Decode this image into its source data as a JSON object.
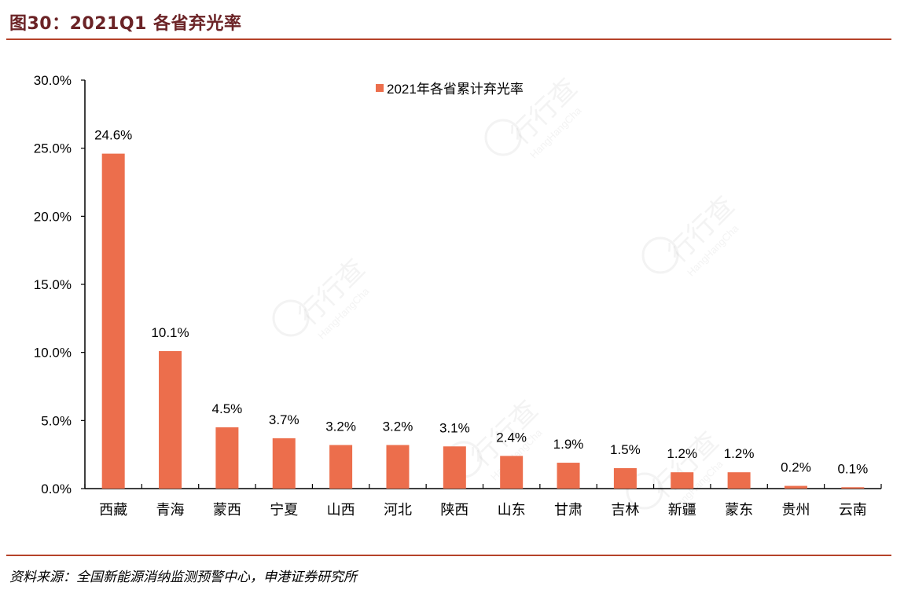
{
  "header": {
    "title": "图30：2021Q1 各省弃光率"
  },
  "footer": {
    "source": "资料来源：全国新能源消纳监测预警中心，申港证券研究所"
  },
  "watermark": {
    "text": "行行查",
    "subtext": "HangHangCha"
  },
  "colors": {
    "bar": "#ec6e4c",
    "title": "#6b2326",
    "rule": "#b5432a",
    "axis": "#000000"
  },
  "chart_data": {
    "type": "bar",
    "title": "图30：2021Q1 各省弃光率",
    "xlabel": "",
    "ylabel": "",
    "categories": [
      "西藏",
      "青海",
      "蒙西",
      "宁夏",
      "山西",
      "河北",
      "陕西",
      "山东",
      "甘肃",
      "吉林",
      "新疆",
      "蒙东",
      "贵州",
      "云南"
    ],
    "series": [
      {
        "name": "2021年各省累计弃光率",
        "values": [
          24.6,
          10.1,
          4.5,
          3.7,
          3.2,
          3.2,
          3.1,
          2.4,
          1.9,
          1.5,
          1.2,
          1.2,
          0.2,
          0.1
        ],
        "labels": [
          "24.6%",
          "10.1%",
          "4.5%",
          "3.7%",
          "3.2%",
          "3.2%",
          "3.1%",
          "2.4%",
          "1.9%",
          "1.5%",
          "1.2%",
          "1.2%",
          "0.2%",
          "0.1%"
        ]
      }
    ],
    "ylim": [
      0,
      30
    ],
    "yticks": [
      "0.0%",
      "5.0%",
      "10.0%",
      "15.0%",
      "20.0%",
      "25.0%",
      "30.0%"
    ],
    "ytick_values": [
      0,
      5,
      10,
      15,
      20,
      25,
      30
    ],
    "legend": {
      "position": "top-center",
      "entries": [
        "2021年各省累计弃光率"
      ]
    },
    "grid": false,
    "data_labels": true
  }
}
